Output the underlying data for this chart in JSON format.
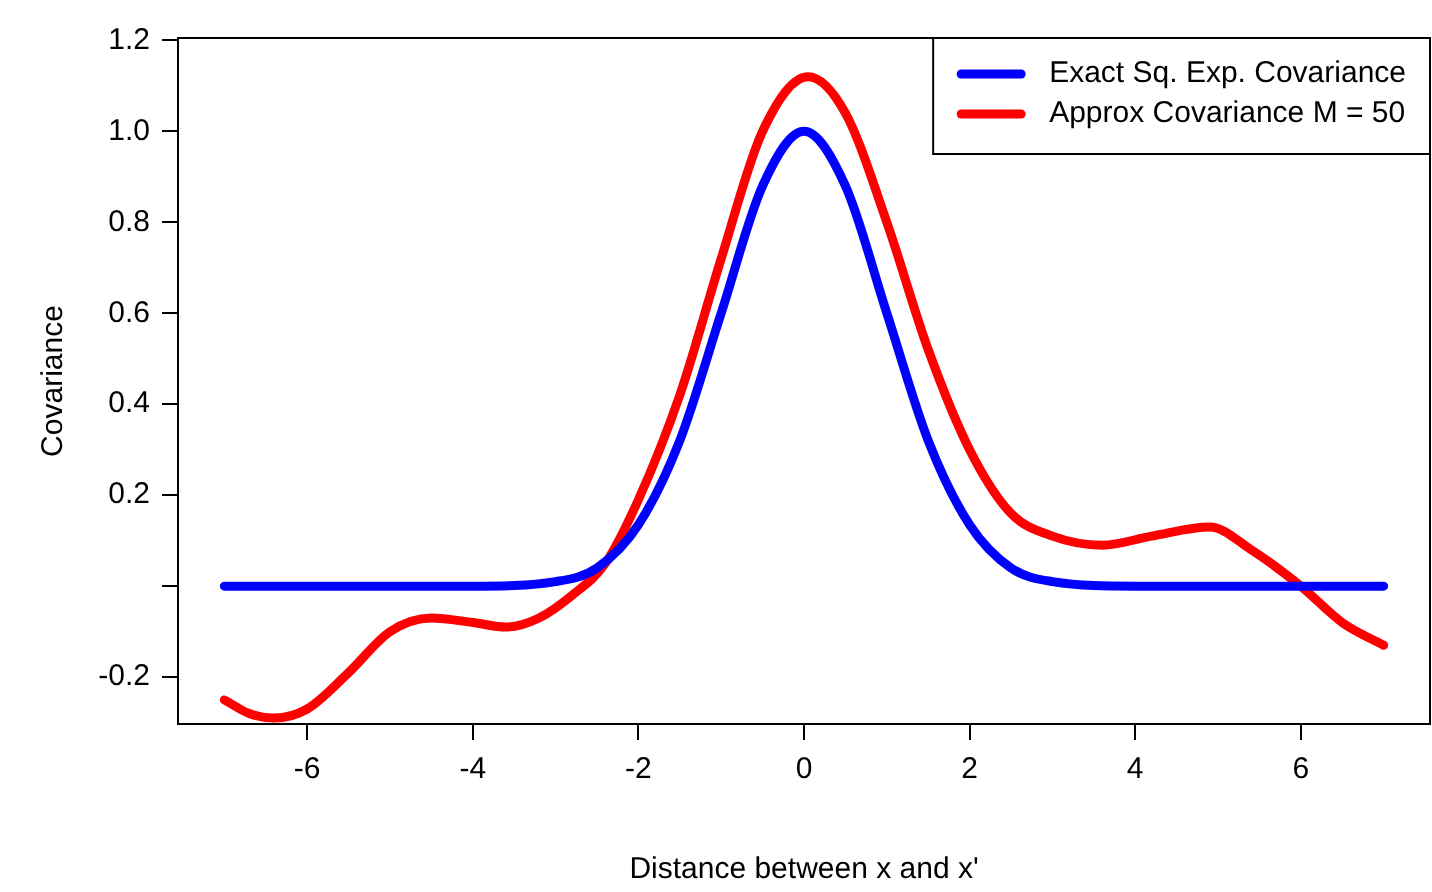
{
  "chart_data": {
    "type": "line",
    "xlabel": "Distance between x and x'",
    "ylabel": "Covariance",
    "xlim": [
      -7.56,
      7.56
    ],
    "xticks": [
      -6,
      -4,
      -2,
      0,
      2,
      4,
      6
    ],
    "ylim": [
      -0.303,
      1.205
    ],
    "yticks": [
      -0.2,
      {
        "value": 0,
        "label": null
      },
      0.2,
      0.4,
      0.6,
      0.8,
      {
        "value": 1,
        "label": "1.0"
      },
      1.2
    ],
    "grid": false,
    "legend": "top right",
    "marker": "none",
    "line_style": "solid",
    "series": [
      {
        "name": "Exact Sq. Exp. Covariance",
        "color": "#0000ff",
        "x": [
          -7,
          -4,
          -3,
          -2.5,
          -2,
          -1.5,
          -1,
          -0.5,
          0,
          0.5,
          1,
          1.5,
          2,
          2.5,
          3,
          4,
          7
        ],
        "values": [
          0,
          0,
          0.01,
          0.04,
          0.135,
          0.32,
          0.6,
          0.88,
          1.0,
          0.88,
          0.6,
          0.32,
          0.135,
          0.04,
          0.01,
          0,
          0
        ]
      },
      {
        "name": "Approx Covariance M = 50",
        "color": "#ff0000",
        "x": [
          -7,
          -6.7,
          -6.4,
          -6,
          -5.5,
          -5,
          -4.5,
          -4,
          -3.6,
          -3.2,
          -2.8,
          -2.4,
          -2,
          -1.5,
          -1,
          -0.5,
          0.05,
          0.5,
          1,
          1.5,
          2,
          2.5,
          3,
          3.6,
          4.2,
          4.9,
          5.4,
          6,
          6.5,
          7
        ],
        "values": [
          -0.25,
          -0.28,
          -0.29,
          -0.27,
          -0.19,
          -0.1,
          -0.07,
          -0.08,
          -0.09,
          -0.07,
          -0.02,
          0.05,
          0.19,
          0.42,
          0.72,
          1.0,
          1.12,
          1.04,
          0.8,
          0.52,
          0.3,
          0.16,
          0.11,
          0.09,
          0.11,
          0.13,
          0.08,
          0,
          -0.08,
          -0.13
        ]
      }
    ]
  }
}
